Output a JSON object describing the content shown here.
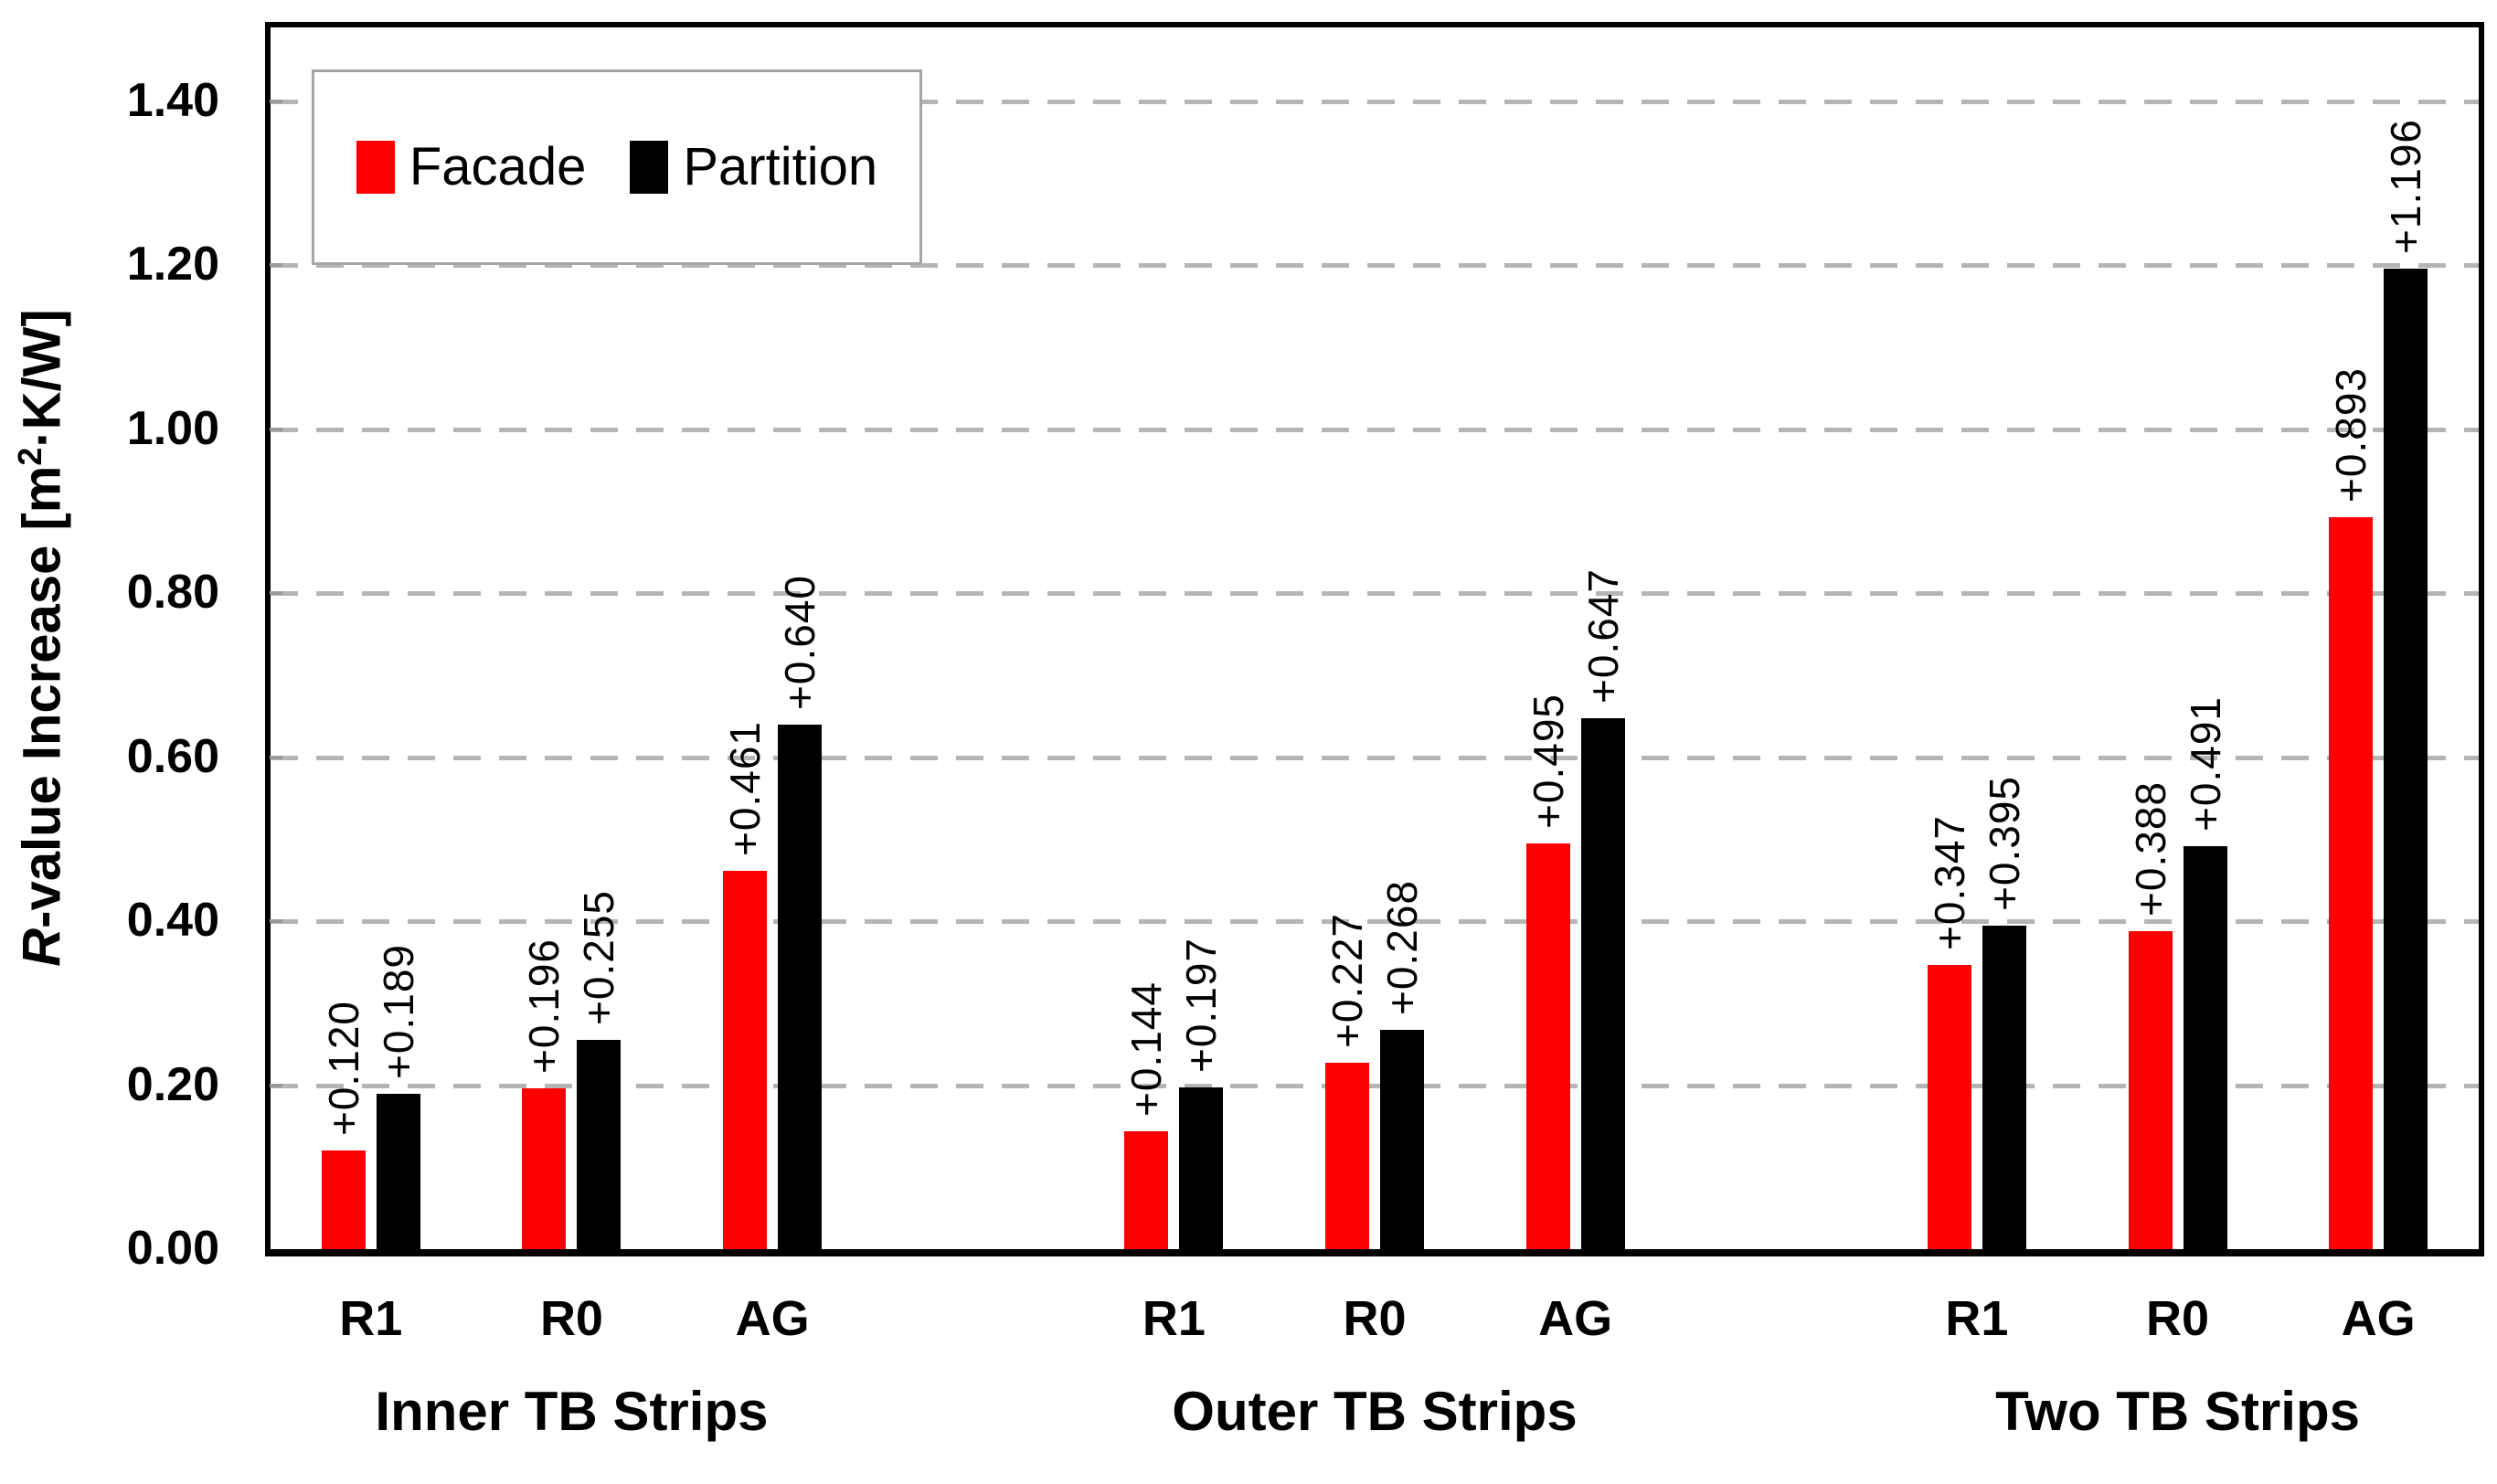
{
  "chart_data": {
    "type": "bar",
    "title": "",
    "xlabel": "",
    "ylabel": "R-value Increase [m²·K/W]",
    "y_axis_title_segments": {
      "italic_r": "R",
      "text_a": "-value Increase [m",
      "sup": "2",
      "text_b": "·K/W]"
    },
    "ylim": [
      0,
      1.49
    ],
    "ytick_step": 0.2,
    "yticks": [
      {
        "value": 0.0,
        "label": "0.00"
      },
      {
        "value": 0.2,
        "label": "0.20"
      },
      {
        "value": 0.4,
        "label": "0.40"
      },
      {
        "value": 0.6,
        "label": "0.60"
      },
      {
        "value": 0.8,
        "label": "0.80"
      },
      {
        "value": 1.0,
        "label": "1.00"
      },
      {
        "value": 1.2,
        "label": "1.20"
      },
      {
        "value": 1.4,
        "label": "1.40"
      }
    ],
    "grid": "horizontal-dashed",
    "legend_position": "top-left-inside",
    "legend": {
      "items": [
        {
          "name": "Facade",
          "color": "#ff0000"
        },
        {
          "name": "Partition",
          "color": "#000000"
        }
      ]
    },
    "series_names": [
      "Facade",
      "Partition"
    ],
    "groups": [
      {
        "label": "Inner TB Strips",
        "clusters": [
          {
            "category": "R1",
            "facade": 0.12,
            "partition": 0.189,
            "facade_label": "+0.120",
            "partition_label": "+0.189"
          },
          {
            "category": "R0",
            "facade": 0.196,
            "partition": 0.255,
            "facade_label": "+0.196",
            "partition_label": "+0.255"
          },
          {
            "category": "AG",
            "facade": 0.461,
            "partition": 0.64,
            "facade_label": "+0.461",
            "partition_label": "+0.640"
          }
        ]
      },
      {
        "label": "Outer TB Strips",
        "clusters": [
          {
            "category": "R1",
            "facade": 0.144,
            "partition": 0.197,
            "facade_label": "+0.144",
            "partition_label": "+0.197"
          },
          {
            "category": "R0",
            "facade": 0.227,
            "partition": 0.268,
            "facade_label": "+0.227",
            "partition_label": "+0.268"
          },
          {
            "category": "AG",
            "facade": 0.495,
            "partition": 0.647,
            "facade_label": "+0.495",
            "partition_label": "+0.647"
          }
        ]
      },
      {
        "label": "Two TB Strips",
        "clusters": [
          {
            "category": "R1",
            "facade": 0.347,
            "partition": 0.395,
            "facade_label": "+0.347",
            "partition_label": "+0.395"
          },
          {
            "category": "R0",
            "facade": 0.388,
            "partition": 0.491,
            "facade_label": "+0.388",
            "partition_label": "+0.491"
          },
          {
            "category": "AG",
            "facade": 0.893,
            "partition": 1.196,
            "facade_label": "+0.893",
            "partition_label": "+1.196"
          }
        ]
      }
    ],
    "colors": {
      "facade": "#ff0000",
      "partition": "#000000",
      "gridline": "#b5b5b5",
      "axis": "#000000",
      "legend_border": "#a6a6a6",
      "background": "#ffffff"
    }
  }
}
